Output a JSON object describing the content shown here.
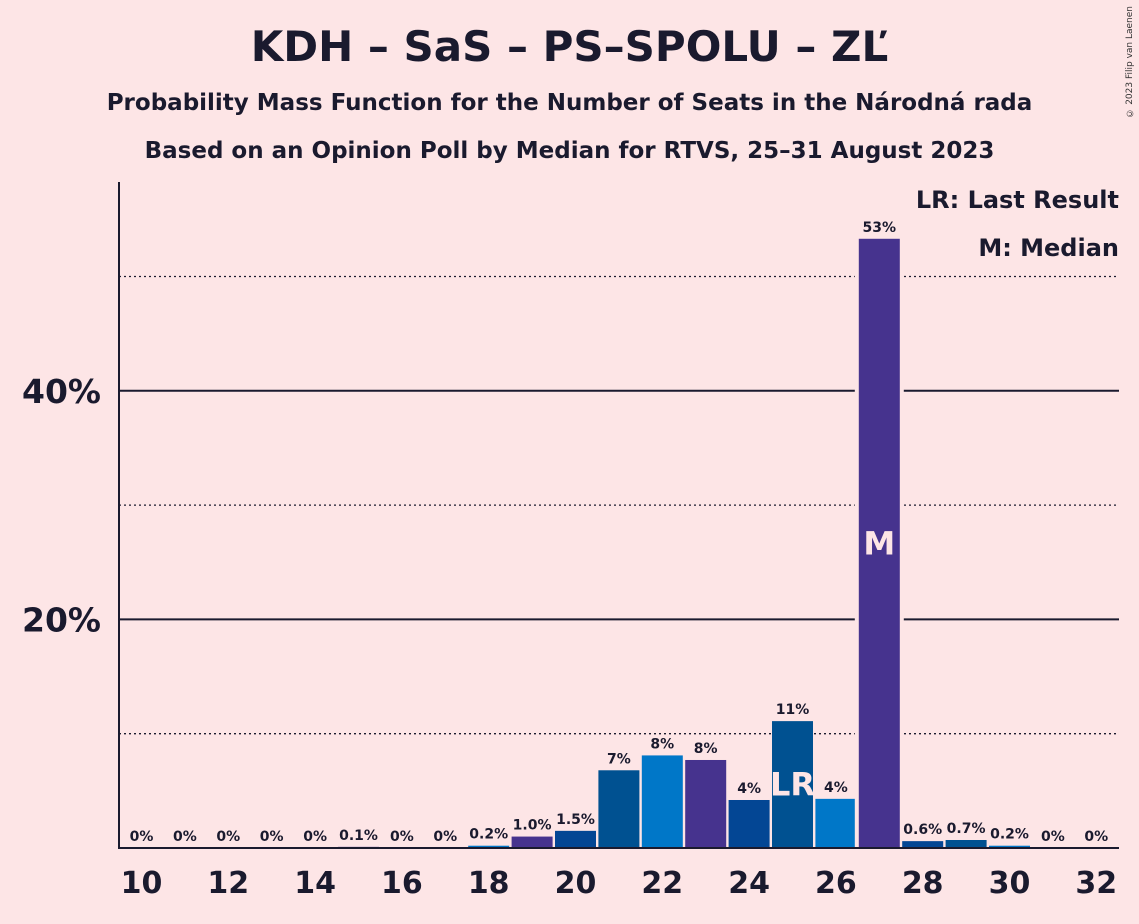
{
  "title": "KDH – SaS – PS–SPOLU – ZĽ",
  "subtitle1": "Probability Mass Function for the Number of Seats in the Národná rada",
  "subtitle2": "Based on an Opinion Poll by Median for RTVS, 25–31 August 2023",
  "copyright": "© 2023 Filip van Laenen",
  "legend": {
    "last_result": "LR: Last Result",
    "median": "M: Median"
  },
  "colors": {
    "background": "#FDE5E6",
    "bars": [
      "#0077C8",
      "#46338E",
      "#034694",
      "#005191"
    ]
  },
  "chart_data": {
    "type": "bar",
    "x": [
      10,
      11,
      12,
      13,
      14,
      15,
      16,
      17,
      18,
      19,
      20,
      21,
      22,
      23,
      24,
      25,
      26,
      27,
      28,
      29,
      30,
      31,
      32
    ],
    "values": [
      0,
      0,
      0,
      0,
      0,
      0.1,
      0,
      0,
      0.2,
      1.0,
      1.5,
      6.8,
      8.1,
      7.7,
      4.2,
      11.1,
      4.3,
      53.3,
      0.6,
      0.7,
      0.2,
      0,
      0
    ],
    "data_labels": [
      "0%",
      "0%",
      "0%",
      "0%",
      "0%",
      "0.1%",
      "0%",
      "0%",
      "0.2%",
      "1.0%",
      "1.5%",
      "7%",
      "8%",
      "8%",
      "4%",
      "11%",
      "4%",
      "53%",
      "0.6%",
      "0.7%",
      "0.2%",
      "0%",
      "0%"
    ],
    "x_tick_labels": [
      "10",
      "12",
      "14",
      "16",
      "18",
      "20",
      "22",
      "24",
      "26",
      "28",
      "30",
      "32"
    ],
    "y_tick_labels": [
      "20%",
      "40%"
    ],
    "ylim": [
      0,
      58
    ],
    "major_gridlines": [
      20,
      40
    ],
    "minor_gridlines": [
      10,
      30,
      50
    ],
    "last_result_seat": 25,
    "last_result_marker": "LR",
    "median_seat": 27,
    "median_marker": "M"
  }
}
